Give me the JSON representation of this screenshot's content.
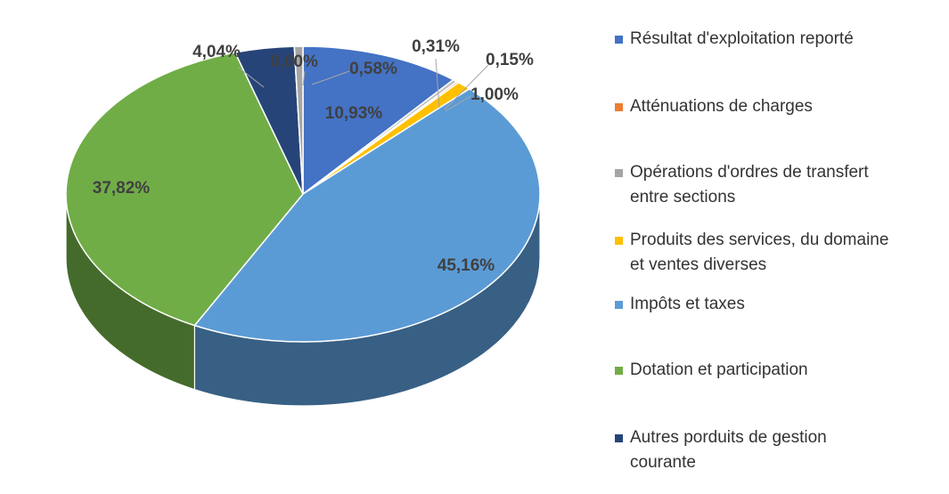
{
  "chart_data": {
    "type": "pie",
    "style": "3d",
    "legend_position": "right",
    "categories": [
      "Résultat d'exploitation reporté",
      "Atténuations de charges",
      "Opérations d'ordres de transfert entre sections",
      "Produits des services, du domaine et ventes diverses",
      "Impôts et taxes",
      "Dotation et participation",
      "Autres porduits de gestion courante"
    ],
    "values": [
      10.93,
      0.15,
      0.58,
      1.0,
      45.16,
      37.82,
      4.04
    ],
    "slices": [
      {
        "label": "Résultat d'exploitation reporté",
        "value": 10.93,
        "value_label": "10,93%",
        "color": "#4472C4"
      },
      {
        "label": "",
        "value": 0.31,
        "value_label": "0,31%",
        "color": "#C0C0C0"
      },
      {
        "label": "Atténuations de charges",
        "value": 0.15,
        "value_label": "0,15%",
        "color": "#ED7D31"
      },
      {
        "label": "Produits des services, du domaine et ventes diverses",
        "value": 1.0,
        "value_label": "1,00%",
        "color": "#FFC000"
      },
      {
        "label": "Impôts et taxes",
        "value": 45.16,
        "value_label": "45,16%",
        "color": "#5B9BD5"
      },
      {
        "label": "Dotation et participation",
        "value": 37.82,
        "value_label": "37,82%",
        "color": "#70AD47"
      },
      {
        "label": "Autres porduits de gestion courante",
        "value": 4.04,
        "value_label": "4,04%",
        "color": "#264478"
      },
      {
        "label": "",
        "value": 0.0,
        "value_label": "0,00%",
        "color": "#7F7F7F"
      },
      {
        "label": "Opérations d'ordres de transfert entre sections",
        "value": 0.58,
        "value_label": "0,58%",
        "color": "#A5A5A5"
      }
    ],
    "legend": [
      {
        "label": "Résultat d'exploitation reporté",
        "color": "#4472C4"
      },
      {
        "label": "Atténuations de charges",
        "color": "#ED7D31"
      },
      {
        "label": "Opérations d'ordres de transfert entre sections",
        "color": "#A5A5A5"
      },
      {
        "label": "Produits des services, du domaine et ventes diverses",
        "color": "#FFC000"
      },
      {
        "label": "Impôts et taxes",
        "color": "#5B9BD5"
      },
      {
        "label": "Dotation et participation",
        "color": "#70AD47"
      },
      {
        "label": "Autres porduits de gestion courante",
        "color": "#264478"
      }
    ]
  }
}
